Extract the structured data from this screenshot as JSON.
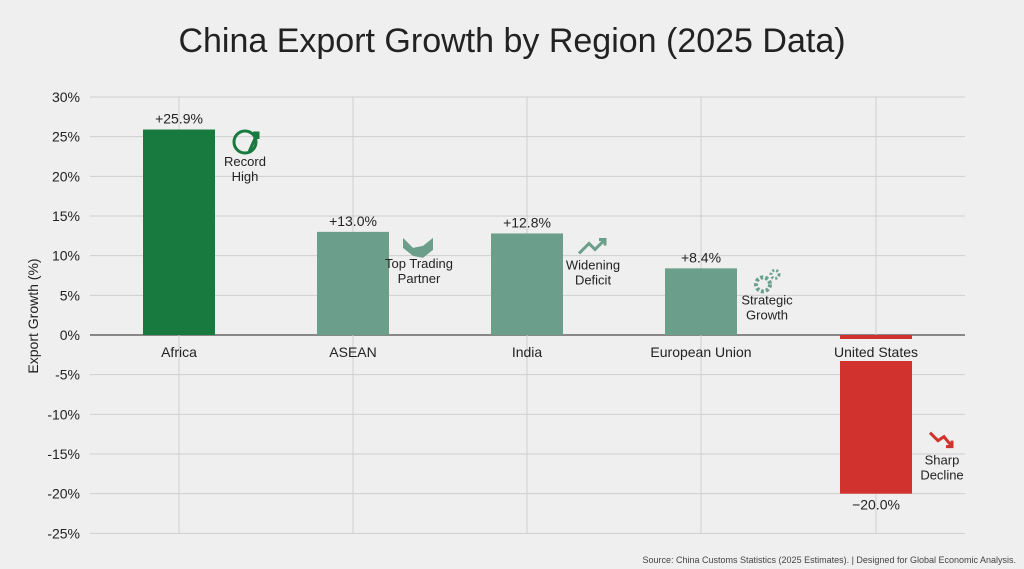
{
  "chart_data": {
    "type": "bar",
    "title": "China Export Growth by Region (2025 Data)",
    "xlabel": "",
    "ylabel": "Export Growth (%)",
    "ylim": [
      -25,
      30
    ],
    "yticks": [
      30,
      25,
      20,
      15,
      10,
      5,
      0,
      -5,
      -10,
      -15,
      -20,
      -25
    ],
    "ytick_labels": [
      "30%",
      "25%",
      "20%",
      "15%",
      "10%",
      "5%",
      "0%",
      "-5%",
      "-10%",
      "-15%",
      "-20%",
      "-25%"
    ],
    "grid": true,
    "categories": [
      "Africa",
      "ASEAN",
      "India",
      "European Union",
      "United States"
    ],
    "values": [
      25.9,
      13.0,
      12.8,
      8.4,
      -20.0
    ],
    "data_labels": [
      "+25.9%",
      "+13.0%",
      "+12.8%",
      "+8.4%",
      "−20.0%"
    ],
    "annotations": [
      {
        "icon": "globe-arrow-icon",
        "lines": [
          "Record",
          "High"
        ]
      },
      {
        "icon": "handshake-icon",
        "lines": [
          "Top Trading",
          "Partner"
        ]
      },
      {
        "icon": "trend-up-icon",
        "lines": [
          "Widening",
          "Deficit"
        ]
      },
      {
        "icon": "gears-icon",
        "lines": [
          "Strategic",
          "Growth"
        ]
      },
      {
        "icon": "trend-down-icon",
        "lines": [
          "Sharp",
          "Decline"
        ]
      }
    ],
    "colors": [
      "#197a3f",
      "#6b9f8b",
      "#6b9f8b",
      "#6b9f8b",
      "#d1322e"
    ]
  },
  "source": "Source: China Customs Statistics (2025 Estimates). | Designed for Global Economic Analysis."
}
